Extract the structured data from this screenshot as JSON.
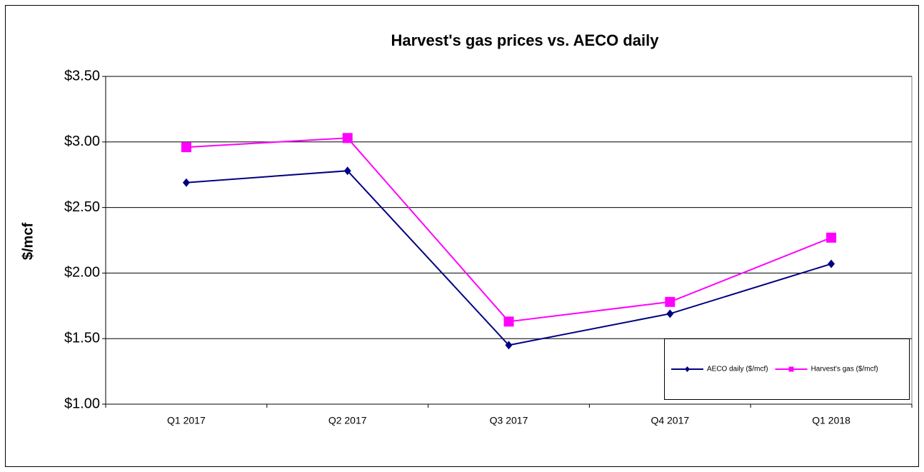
{
  "chart_data": {
    "type": "line",
    "title": "Harvest's gas prices vs. AECO daily",
    "y_label": "$/mcf",
    "categories": [
      "Q1 2017",
      "Q2 2017",
      "Q3 2017",
      "Q4 2017",
      "Q1 2018"
    ],
    "series": [
      {
        "name": "AECO daily ($/mcf)",
        "color": "#000080",
        "marker": "diamond",
        "values": [
          2.69,
          2.78,
          1.45,
          1.69,
          2.07
        ]
      },
      {
        "name": "Harvest's gas ($/mcf)",
        "color": "#ff00ff",
        "marker": "square",
        "values": [
          2.96,
          3.03,
          1.63,
          1.78,
          2.27
        ]
      }
    ],
    "ylim": [
      1.0,
      3.5
    ],
    "yticks": [
      {
        "value": 1.0,
        "label": "$1.00"
      },
      {
        "value": 1.5,
        "label": "$1.50"
      },
      {
        "value": 2.0,
        "label": "$2.00"
      },
      {
        "value": 2.5,
        "label": "$2.50"
      },
      {
        "value": 3.0,
        "label": "$3.00"
      },
      {
        "value": 3.5,
        "label": "$3.50"
      }
    ],
    "grid": true,
    "legend": "lower right"
  }
}
